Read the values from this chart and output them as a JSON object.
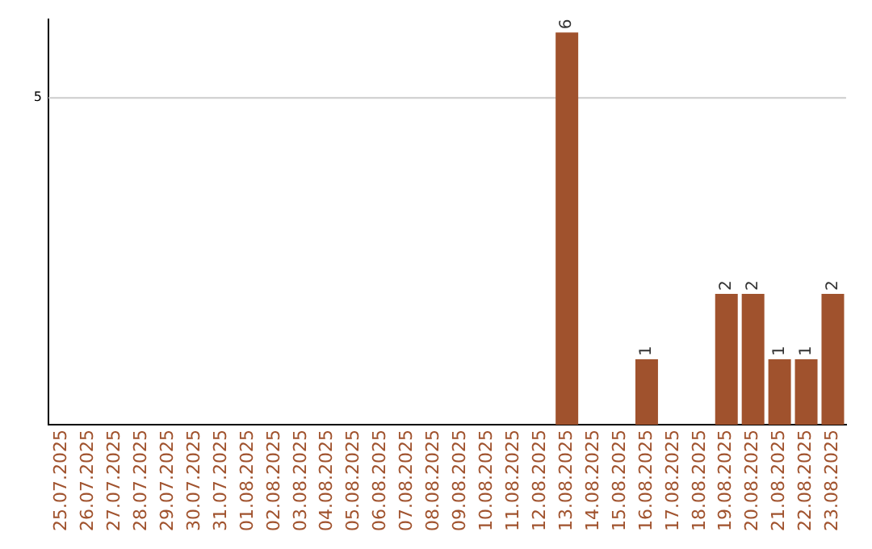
{
  "chart_data": {
    "type": "bar",
    "categories": [
      "25.07.2025",
      "26.07.2025",
      "27.07.2025",
      "28.07.2025",
      "29.07.2025",
      "30.07.2025",
      "31.07.2025",
      "01.08.2025",
      "02.08.2025",
      "03.08.2025",
      "04.08.2025",
      "05.08.2025",
      "06.08.2025",
      "07.08.2025",
      "08.08.2025",
      "09.08.2025",
      "10.08.2025",
      "11.08.2025",
      "12.08.2025",
      "13.08.2025",
      "14.08.2025",
      "15.08.2025",
      "16.08.2025",
      "17.08.2025",
      "18.08.2025",
      "19.08.2025",
      "20.08.2025",
      "21.08.2025",
      "22.08.2025",
      "23.08.2025"
    ],
    "values": [
      null,
      null,
      null,
      null,
      null,
      null,
      null,
      null,
      null,
      null,
      null,
      null,
      null,
      null,
      null,
      null,
      null,
      null,
      null,
      6,
      null,
      null,
      1,
      null,
      null,
      2,
      2,
      1,
      1,
      2
    ],
    "data_labels": true,
    "ylim": [
      0,
      6.2
    ],
    "ref_lines": [
      {
        "axis": "y",
        "value": 5,
        "label": "5",
        "color": "#cccccc"
      }
    ],
    "color": "#a0522d"
  }
}
